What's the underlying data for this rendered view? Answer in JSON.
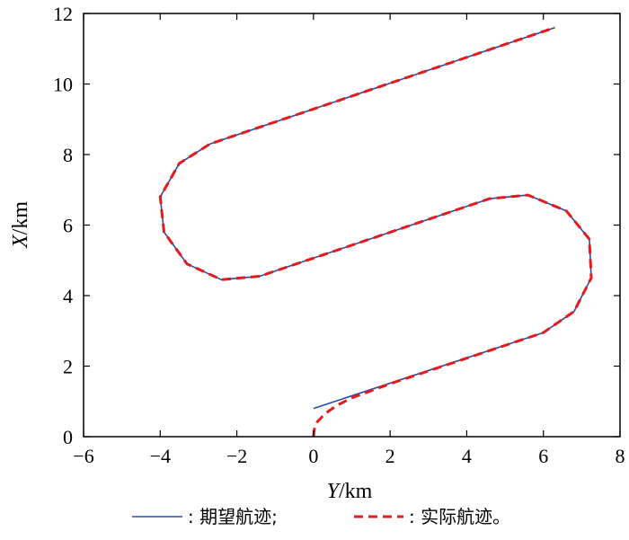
{
  "chart_data": {
    "type": "line",
    "xlabel": "Y/km",
    "ylabel": "X/km",
    "xlim": [
      -6,
      8
    ],
    "ylim": [
      0,
      12
    ],
    "x_ticks": [
      -6,
      -4,
      -2,
      0,
      2,
      4,
      6,
      8
    ],
    "y_ticks": [
      0,
      2,
      4,
      6,
      8,
      10,
      12
    ],
    "x_tick_labels": [
      "−6",
      "−4",
      "−2",
      "0",
      "2",
      "4",
      "6",
      "8"
    ],
    "y_tick_labels": [
      "0",
      "2",
      "4",
      "6",
      "8",
      "10",
      "12"
    ],
    "grid": false,
    "legend_position": "bottom",
    "series": [
      {
        "name": "期望航迹;",
        "color": "#2b4ba8",
        "style": "solid",
        "x": [
          0.0,
          6.0,
          6.8,
          7.25,
          7.2,
          6.6,
          5.6,
          4.6,
          -1.4,
          -2.4,
          -3.3,
          -3.9,
          -4.0,
          -3.5,
          -2.7,
          6.3
        ],
        "y": [
          0.8,
          2.95,
          3.55,
          4.5,
          5.6,
          6.4,
          6.85,
          6.75,
          4.55,
          4.45,
          4.9,
          5.8,
          6.8,
          7.75,
          8.3,
          11.6
        ]
      },
      {
        "name": "实际航迹。",
        "color": "#e41a1c",
        "style": "dashed",
        "x": [
          0.0,
          0.02,
          0.1,
          0.3,
          0.6,
          1.0,
          1.5,
          2.0,
          6.0,
          6.8,
          7.25,
          7.2,
          6.6,
          5.6,
          4.6,
          -1.4,
          -2.4,
          -3.3,
          -3.9,
          -4.0,
          -3.5,
          -2.7,
          6.3
        ],
        "y": [
          0.0,
          0.2,
          0.42,
          0.65,
          0.88,
          1.1,
          1.3,
          1.5,
          2.95,
          3.55,
          4.5,
          5.6,
          6.4,
          6.85,
          6.75,
          4.55,
          4.45,
          4.9,
          5.8,
          6.8,
          7.75,
          8.3,
          11.6
        ]
      }
    ],
    "legend_prefix": ":"
  }
}
